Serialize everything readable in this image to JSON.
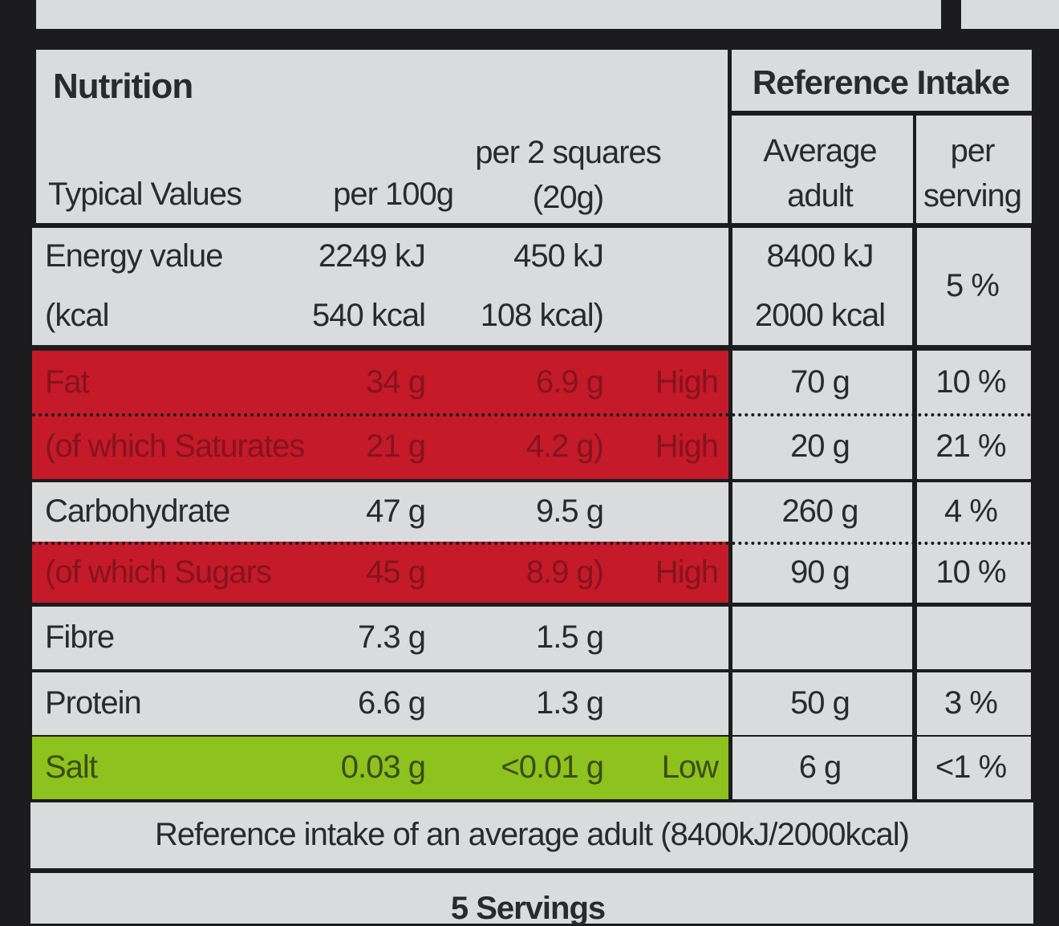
{
  "header": {
    "title": "Nutrition",
    "typical_values": "Typical Values",
    "per_100g": "per 100g",
    "per_serving": "per 2 squares (20g)",
    "reference_intake": "Reference Intake",
    "average_adult": "Average adult",
    "per_serving_percent": "per serving"
  },
  "rows": [
    {
      "label": "Energy value",
      "per_100g": "2249 kJ",
      "per_serving": "450 kJ",
      "reference_intake": "8400 kJ"
    },
    {
      "label": "(kcal",
      "per_100g": "540 kcal",
      "per_serving": "108 kcal)",
      "reference_intake": "2000 kcal"
    },
    {
      "label": "Fat",
      "per_100g": "34 g",
      "per_serving": "6.9 g",
      "level": "High",
      "reference_intake": "70 g",
      "percent": "10 %"
    },
    {
      "label": "(of which Saturates",
      "per_100g": "21 g",
      "per_serving": "4.2 g)",
      "level": "High",
      "reference_intake": "20 g",
      "percent": "21 %"
    },
    {
      "label": "Carbohydrate",
      "per_100g": "47 g",
      "per_serving": "9.5 g",
      "reference_intake": "260 g",
      "percent": "4 %"
    },
    {
      "label": "(of which Sugars",
      "per_100g": "45 g",
      "per_serving": "8.9 g)",
      "level": "High",
      "reference_intake": "90 g",
      "percent": "10 %"
    },
    {
      "label": "Fibre",
      "per_100g": "7.3 g",
      "per_serving": "1.5 g"
    },
    {
      "label": "Protein",
      "per_100g": "6.6 g",
      "per_serving": "1.3 g",
      "reference_intake": "50 g",
      "percent": "3 %"
    },
    {
      "label": "Salt",
      "per_100g": "0.03 g",
      "per_serving": "<0.01 g",
      "level": "Low",
      "reference_intake": "6 g",
      "percent": "<1 %"
    }
  ],
  "energy_percent": "5 %",
  "footer": {
    "note": "Reference intake of an average adult (8400kJ/2000kcal)",
    "servings": "5 Servings"
  }
}
